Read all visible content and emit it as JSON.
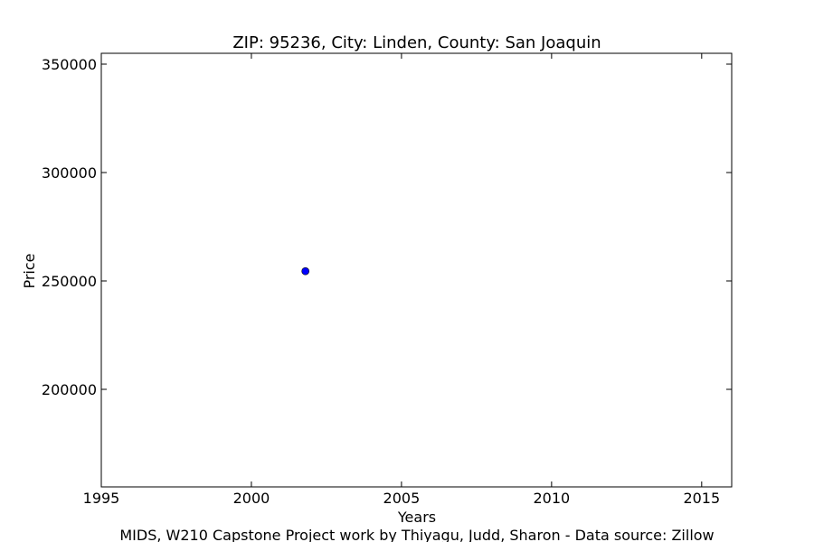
{
  "chart_data": {
    "type": "scatter",
    "title": "ZIP: 95236, City: Linden, County: San Joaquin",
    "xlabel": "Years",
    "ylabel": "Price",
    "xlim": [
      1995,
      2016
    ],
    "ylim": [
      155000,
      355000
    ],
    "x_ticks": [
      "1995",
      "2000",
      "2005",
      "2010",
      "2015"
    ],
    "y_ticks": [
      "200000",
      "250000",
      "300000",
      "350000"
    ],
    "grid": false,
    "series": [
      {
        "color": "#0000ff",
        "points": [
          {
            "x": 2001.8,
            "y": 254500
          }
        ]
      }
    ]
  },
  "footer": "MIDS, W210 Capstone Project work by Thiyagu, Judd, Sharon  -  Data source: Zillow"
}
